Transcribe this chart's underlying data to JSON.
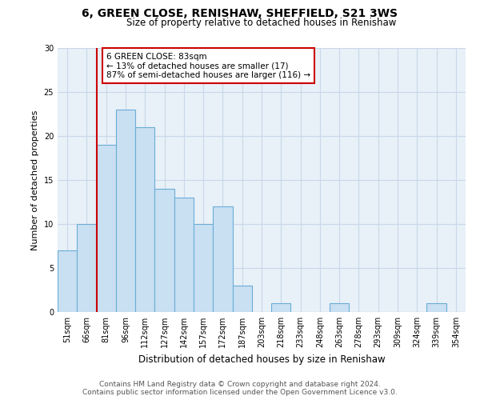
{
  "title": "6, GREEN CLOSE, RENISHAW, SHEFFIELD, S21 3WS",
  "subtitle": "Size of property relative to detached houses in Renishaw",
  "xlabel": "Distribution of detached houses by size in Renishaw",
  "ylabel": "Number of detached properties",
  "footer_line1": "Contains HM Land Registry data © Crown copyright and database right 2024.",
  "footer_line2": "Contains public sector information licensed under the Open Government Licence v3.0.",
  "categories": [
    "51sqm",
    "66sqm",
    "81sqm",
    "96sqm",
    "112sqm",
    "127sqm",
    "142sqm",
    "157sqm",
    "172sqm",
    "187sqm",
    "203sqm",
    "218sqm",
    "233sqm",
    "248sqm",
    "263sqm",
    "278sqm",
    "293sqm",
    "309sqm",
    "324sqm",
    "339sqm",
    "354sqm"
  ],
  "values": [
    7,
    10,
    19,
    23,
    21,
    14,
    13,
    10,
    12,
    3,
    0,
    1,
    0,
    0,
    1,
    0,
    0,
    0,
    0,
    1,
    0
  ],
  "bar_color": "#c9dff2",
  "bar_edge_color": "#6aaed6",
  "highlight_line_color": "#cc0000",
  "annotation_line1": "6 GREEN CLOSE: 83sqm",
  "annotation_line2": "← 13% of detached houses are smaller (17)",
  "annotation_line3": "87% of semi-detached houses are larger (116) →",
  "annotation_box_color": "#cc0000",
  "ylim": [
    0,
    30
  ],
  "yticks": [
    0,
    5,
    10,
    15,
    20,
    25,
    30
  ],
  "background_color": "#ffffff",
  "plot_bg_color": "#e8f0f8",
  "grid_color": "#c8d8e8"
}
